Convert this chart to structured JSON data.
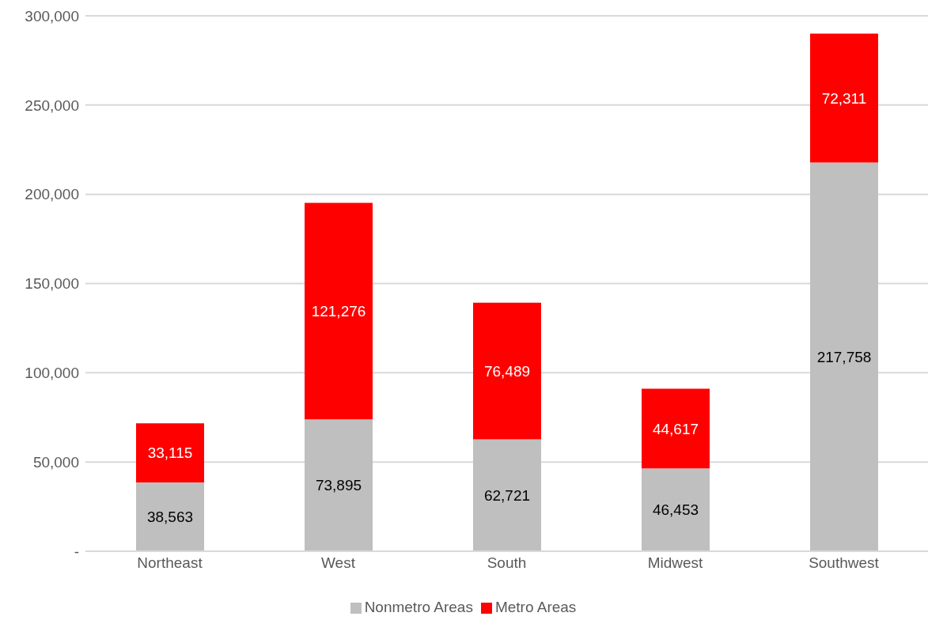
{
  "chart_data": {
    "type": "bar",
    "stacked": true,
    "categories": [
      "Northeast",
      "West",
      "South",
      "Midwest",
      "Southwest"
    ],
    "series": [
      {
        "name": "Nonmetro Areas",
        "color": "#bfbfbf",
        "values": [
          38563,
          73895,
          62721,
          46453,
          217758
        ],
        "value_labels": [
          "38,563",
          "73,895",
          "62,721",
          "46,453",
          "217,758"
        ]
      },
      {
        "name": "Metro Areas",
        "color": "#ff0000",
        "values": [
          33115,
          121276,
          76489,
          44617,
          72311
        ],
        "value_labels": [
          "33,115",
          "121,276",
          "76,489",
          "44,617",
          "72,311"
        ]
      }
    ],
    "ylim": [
      0,
      300000
    ],
    "yticks": [
      {
        "value": 0,
        "label": "-"
      },
      {
        "value": 50000,
        "label": "50,000"
      },
      {
        "value": 100000,
        "label": "100,000"
      },
      {
        "value": 150000,
        "label": "150,000"
      },
      {
        "value": 200000,
        "label": "200,000"
      },
      {
        "value": 250000,
        "label": "250,000"
      },
      {
        "value": 300000,
        "label": "300,000"
      }
    ],
    "grid": "y",
    "legend": "bottom"
  }
}
